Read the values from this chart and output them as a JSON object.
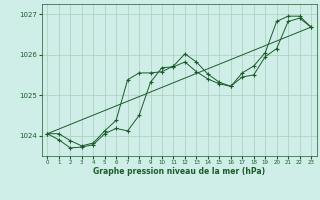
{
  "bg_color": "#d0eee8",
  "grid_color": "#aaccbb",
  "line_color": "#1a5c2a",
  "marker_color": "#1a5c2a",
  "xlabel": "Graphe pression niveau de la mer (hPa)",
  "ylim": [
    1023.5,
    1027.25
  ],
  "xlim": [
    -0.5,
    23.5
  ],
  "yticks": [
    1024,
    1025,
    1026,
    1027
  ],
  "xticks": [
    0,
    1,
    2,
    3,
    4,
    5,
    6,
    7,
    8,
    9,
    10,
    11,
    12,
    13,
    14,
    15,
    16,
    17,
    18,
    19,
    20,
    21,
    22,
    23
  ],
  "line1_x": [
    0,
    1,
    2,
    3,
    4,
    5,
    6,
    7,
    8,
    9,
    10,
    11,
    12,
    13,
    14,
    15,
    16,
    17,
    18,
    19,
    20,
    21,
    22,
    23
  ],
  "line1_y": [
    1024.05,
    1024.05,
    1023.88,
    1023.75,
    1023.82,
    1024.12,
    1024.38,
    1025.38,
    1025.55,
    1025.55,
    1025.58,
    1025.72,
    1026.02,
    1025.82,
    1025.52,
    1025.32,
    1025.22,
    1025.55,
    1025.72,
    1026.05,
    1026.82,
    1026.95,
    1026.95,
    1026.68
  ],
  "line2_x": [
    0,
    1,
    2,
    3,
    4,
    5,
    6,
    7,
    8,
    9,
    10,
    11,
    12,
    13,
    14,
    15,
    16,
    17,
    18,
    19,
    20,
    21,
    22,
    23
  ],
  "line2_y": [
    1024.05,
    1023.9,
    1023.7,
    1023.72,
    1023.78,
    1024.05,
    1024.18,
    1024.12,
    1024.5,
    1025.32,
    1025.68,
    1025.7,
    1025.82,
    1025.58,
    1025.4,
    1025.28,
    1025.22,
    1025.45,
    1025.5,
    1025.95,
    1026.15,
    1026.82,
    1026.9,
    1026.68
  ],
  "line3_x": [
    0,
    23
  ],
  "line3_y": [
    1024.05,
    1026.68
  ],
  "figsize": [
    3.2,
    2.0
  ],
  "dpi": 100
}
